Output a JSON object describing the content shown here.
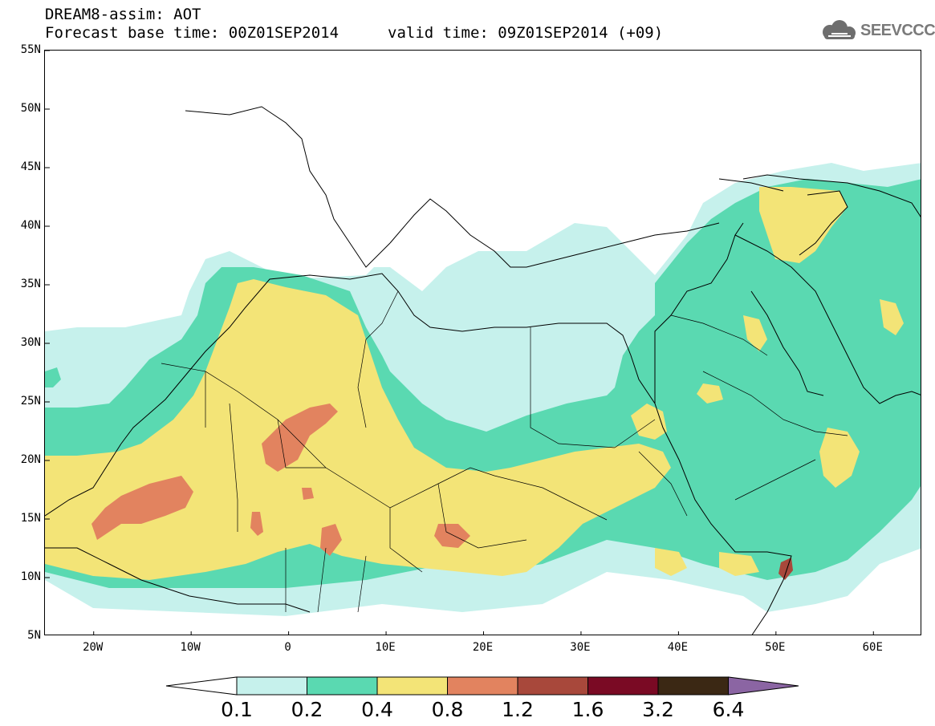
{
  "header": {
    "title": "DREAM8-assim: AOT",
    "forecast_base": "Forecast base time: 00Z01SEP2014",
    "valid_time": "valid time: 09Z01SEP2014 (+09)",
    "logo_text": "SEEVCCC"
  },
  "map": {
    "projection": "lat-lon",
    "lon_range": [
      -25,
      65
    ],
    "lat_range": [
      5,
      55
    ],
    "lat_ticks": [
      "55N",
      "50N",
      "45N",
      "40N",
      "35N",
      "30N",
      "25N",
      "20N",
      "15N",
      "10N",
      "5N"
    ],
    "lon_ticks": [
      "20W",
      "10W",
      "0",
      "10E",
      "20E",
      "30E",
      "40E",
      "50E",
      "60E"
    ],
    "variable": "AOT",
    "colors": {
      "bin_0_1_to_0_2": "#c6f1ec",
      "bin_0_2_to_0_4": "#5ad9b1",
      "bin_0_4_to_0_8": "#f3e477",
      "bin_0_8_to_1_2": "#e2835f",
      "bin_1_2_to_1_6": "#a8483b",
      "bin_1_6_to_3_2": "#7a0a24",
      "bin_3_2_to_6_4": "#3b2814",
      "bin_above_6_4": "#8b65a3"
    }
  },
  "colorbar": {
    "labels": [
      "0.1",
      "0.2",
      "0.4",
      "0.8",
      "1.2",
      "1.6",
      "3.2",
      "6.4"
    ],
    "colors": [
      "#c6f1ec",
      "#5ad9b1",
      "#f3e477",
      "#e2835f",
      "#a8483b",
      "#7a0a24",
      "#3b2814"
    ],
    "low_extend_color": "#ffffff",
    "high_extend_color": "#8b65a3"
  }
}
